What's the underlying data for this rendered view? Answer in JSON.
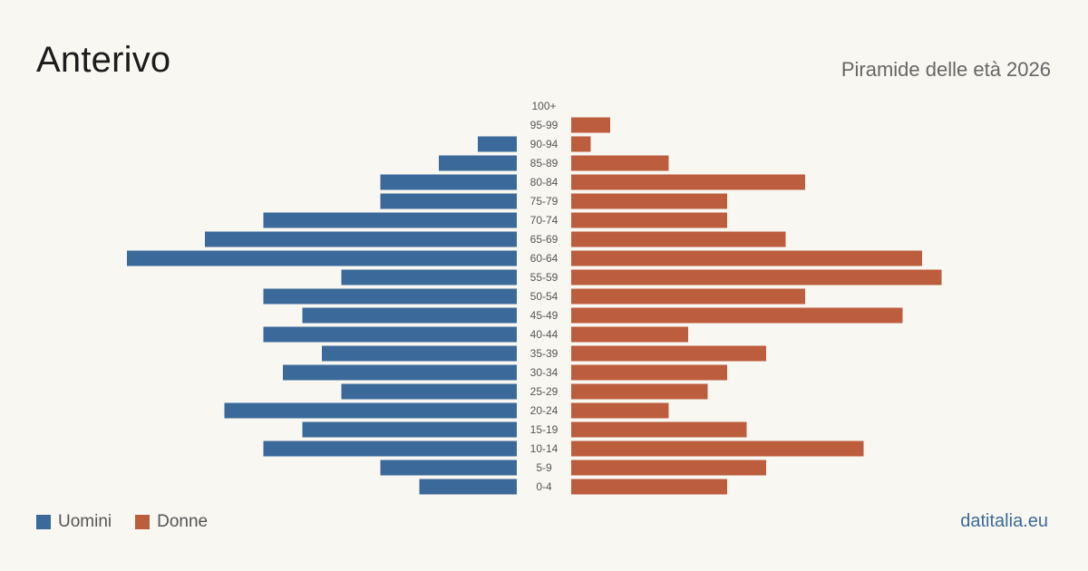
{
  "header": {
    "title": "Anterivo",
    "subtitle": "Piramide delle età 2026"
  },
  "legend": {
    "men_label": "Uomini",
    "women_label": "Donne"
  },
  "brand": "datitalia.eu",
  "colors": {
    "men": "#3b6a9a",
    "women": "#bc5d3d",
    "background": "#f9f7f2",
    "age_label": "#555555"
  },
  "chart_data": {
    "type": "bar",
    "orientation": "horizontal-pyramid",
    "categories": [
      "100+",
      "95-99",
      "90-94",
      "85-89",
      "80-84",
      "75-79",
      "70-74",
      "65-69",
      "60-64",
      "55-59",
      "50-54",
      "45-49",
      "40-44",
      "35-39",
      "30-34",
      "25-29",
      "20-24",
      "15-19",
      "10-14",
      "5-9",
      "0-4"
    ],
    "series": [
      {
        "name": "Uomini",
        "values": [
          0,
          0,
          2,
          4,
          7,
          7,
          13,
          16,
          20,
          9,
          13,
          11,
          13,
          10,
          12,
          9,
          15,
          11,
          13,
          7,
          5
        ]
      },
      {
        "name": "Donne",
        "values": [
          0,
          2,
          1,
          5,
          12,
          8,
          8,
          11,
          18,
          19,
          12,
          17,
          6,
          10,
          8,
          7,
          5,
          9,
          15,
          10,
          8
        ]
      }
    ],
    "xlim": [
      0,
      20
    ],
    "grid": false,
    "legend_position": "bottom-left"
  }
}
